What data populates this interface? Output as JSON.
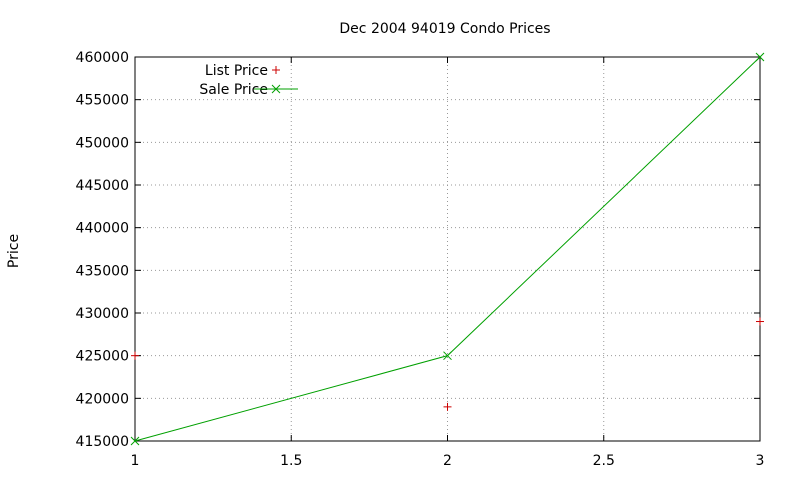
{
  "chart_data": {
    "type": "line",
    "title": "Dec 2004 94019 Condo Prices",
    "xlabel": "",
    "ylabel": "Price",
    "xlim": [
      1,
      3
    ],
    "ylim": [
      415000,
      460000
    ],
    "x_ticks": [
      "1",
      "1.5",
      "2",
      "2.5",
      "3"
    ],
    "y_ticks": [
      "415000",
      "420000",
      "425000",
      "430000",
      "435000",
      "440000",
      "445000",
      "450000",
      "455000",
      "460000"
    ],
    "grid": true,
    "legend_position": "top-left",
    "series": [
      {
        "name": "List Price",
        "style": "points",
        "marker": "plus",
        "color": "#cc0000",
        "points": [
          [
            1,
            425000
          ],
          [
            2,
            419000
          ],
          [
            3,
            429000
          ]
        ]
      },
      {
        "name": "Sale Price",
        "style": "linespoints",
        "marker": "x",
        "color": "#00a000",
        "points": [
          [
            1,
            415000
          ],
          [
            2,
            425000
          ],
          [
            3,
            460000
          ]
        ]
      }
    ]
  }
}
